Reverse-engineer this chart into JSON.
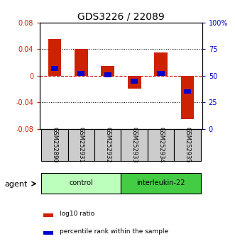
{
  "title": "GDS3226 / 22089",
  "samples": [
    "GSM252890",
    "GSM252931",
    "GSM252932",
    "GSM252933",
    "GSM252934",
    "GSM252935"
  ],
  "log10_ratio": [
    0.055,
    0.04,
    0.015,
    -0.02,
    0.035,
    -0.065
  ],
  "percentile_rank": [
    57,
    52,
    51,
    45,
    52,
    35
  ],
  "ylim": [
    -0.08,
    0.08
  ],
  "yticks_left": [
    -0.08,
    -0.04,
    0,
    0.04,
    0.08
  ],
  "yticks_right": [
    0,
    25,
    50,
    75,
    100
  ],
  "ytick_labels_left": [
    "-0.08",
    "-0.04",
    "0",
    "0.04",
    "0.08"
  ],
  "ytick_labels_right": [
    "0",
    "25",
    "50",
    "75",
    "100%"
  ],
  "control_label": "control",
  "treatment_label": "interleukin-22",
  "agent_label": "agent",
  "legend_items": [
    "log10 ratio",
    "percentile rank within the sample"
  ],
  "red_color": "#cc2200",
  "blue_color": "#0000cc",
  "control_color": "#bbffbb",
  "treatment_color": "#44cc44",
  "sample_box_color": "#cccccc",
  "bar_width": 0.5,
  "dashed_zero_color": "#cc0000",
  "title_fontsize": 10,
  "tick_fontsize": 7,
  "sample_fontsize": 6,
  "legend_fontsize": 6.5
}
